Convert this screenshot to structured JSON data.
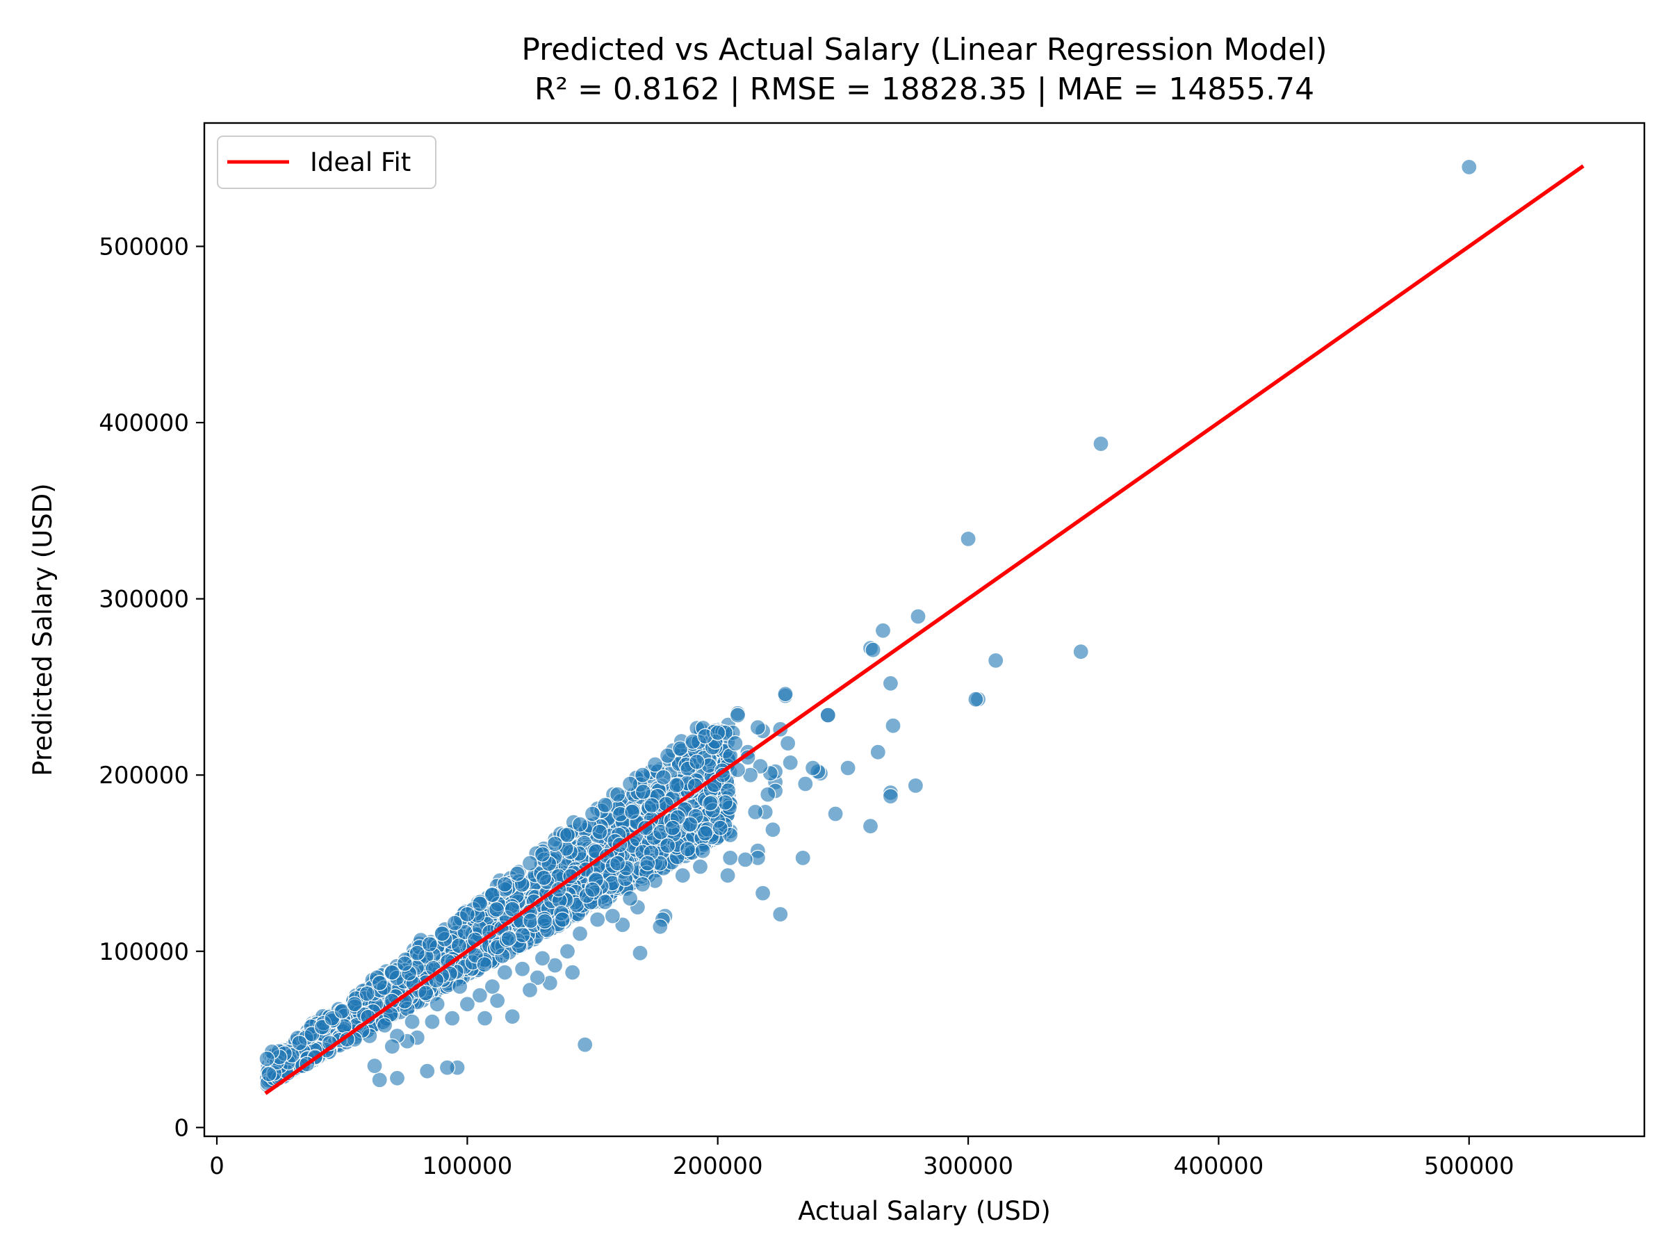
{
  "chart_data": {
    "type": "scatter",
    "title": "Predicted vs Actual Salary (Linear Regression Model)",
    "subtitle": "R² = 0.8162 | RMSE = 18828.35 | MAE = 14855.74",
    "xlabel": "Actual Salary (USD)",
    "ylabel": "Predicted Salary (USD)",
    "xlim": [
      -5000,
      570000
    ],
    "ylim": [
      -5000,
      570000
    ],
    "xticks": [
      0,
      100000,
      200000,
      300000,
      400000,
      500000
    ],
    "yticks": [
      0,
      100000,
      200000,
      300000,
      400000,
      500000
    ],
    "xtick_labels": [
      "0",
      "100000",
      "200000",
      "300000",
      "400000",
      "500000"
    ],
    "ytick_labels": [
      "0",
      "100000",
      "200000",
      "300000",
      "400000",
      "500000"
    ],
    "grid": false,
    "legend": {
      "position": "upper-left",
      "entries": [
        "Ideal Fit"
      ]
    },
    "colors": {
      "points": "#1f77b4",
      "ideal_line": "#ff0000"
    },
    "series": [
      {
        "kind": "scatter",
        "points": [
          [
            500000,
            545000
          ],
          [
            353000,
            388000
          ],
          [
            300000,
            334000
          ],
          [
            345000,
            270000
          ],
          [
            311000,
            265000
          ],
          [
            280000,
            290000
          ],
          [
            266000,
            282000
          ],
          [
            261000,
            272000
          ],
          [
            262000,
            271000
          ],
          [
            269000,
            252000
          ],
          [
            304000,
            243000
          ],
          [
            303000,
            243000
          ],
          [
            279000,
            194000
          ],
          [
            270000,
            228000
          ],
          [
            264000,
            213000
          ],
          [
            269000,
            190000
          ],
          [
            269000,
            188000
          ],
          [
            261000,
            171000
          ],
          [
            252000,
            204000
          ],
          [
            247000,
            178000
          ],
          [
            244000,
            234000
          ],
          [
            244000,
            234000
          ],
          [
            241000,
            201000
          ],
          [
            240000,
            202000
          ],
          [
            238000,
            204000
          ],
          [
            235000,
            195000
          ],
          [
            234000,
            153000
          ],
          [
            229000,
            207000
          ],
          [
            228000,
            218000
          ],
          [
            227000,
            245000
          ],
          [
            227000,
            246000
          ],
          [
            225000,
            226000
          ],
          [
            225000,
            121000
          ],
          [
            223000,
            196000
          ],
          [
            223000,
            202000
          ],
          [
            223000,
            191000
          ],
          [
            222000,
            169000
          ],
          [
            221000,
            201000
          ],
          [
            220000,
            189000
          ],
          [
            219000,
            179000
          ],
          [
            218000,
            225000
          ],
          [
            218000,
            133000
          ],
          [
            217000,
            205000
          ],
          [
            216000,
            227000
          ],
          [
            216000,
            157000
          ],
          [
            216000,
            153000
          ],
          [
            215000,
            179000
          ],
          [
            213000,
            200000
          ],
          [
            212000,
            213000
          ],
          [
            211000,
            152000
          ],
          [
            208000,
            235000
          ],
          [
            208000,
            234000
          ],
          [
            206000,
            224000
          ],
          [
            205000,
            211000
          ],
          [
            205000,
            166000
          ],
          [
            205000,
            153000
          ],
          [
            204000,
            143000
          ],
          [
            203000,
            224000
          ],
          [
            202000,
            200000
          ],
          [
            201000,
            170000
          ],
          [
            199000,
            219000
          ],
          [
            198000,
            180000
          ],
          [
            197000,
            184000
          ],
          [
            195000,
            167000
          ],
          [
            194000,
            157000
          ],
          [
            193000,
            148000
          ],
          [
            191000,
            194000
          ],
          [
            189000,
            172000
          ],
          [
            188000,
            158000
          ],
          [
            186000,
            143000
          ],
          [
            184000,
            176000
          ],
          [
            182000,
            170000
          ],
          [
            180000,
            160000
          ],
          [
            179000,
            120000
          ],
          [
            178000,
            118000
          ],
          [
            177000,
            114000
          ],
          [
            169000,
            99000
          ],
          [
            175000,
            140000
          ],
          [
            172000,
            150000
          ],
          [
            170000,
            138000
          ],
          [
            168000,
            125000
          ],
          [
            165000,
            130000
          ],
          [
            162000,
            115000
          ],
          [
            160000,
            150000
          ],
          [
            158000,
            120000
          ],
          [
            155000,
            128000
          ],
          [
            152000,
            118000
          ],
          [
            150000,
            135000
          ],
          [
            147000,
            47000
          ],
          [
            145000,
            110000
          ],
          [
            142000,
            88000
          ],
          [
            140000,
            100000
          ],
          [
            138000,
            118000
          ],
          [
            135000,
            92000
          ],
          [
            133000,
            82000
          ],
          [
            130000,
            96000
          ],
          [
            128000,
            85000
          ],
          [
            125000,
            78000
          ],
          [
            122000,
            90000
          ],
          [
            118000,
            63000
          ],
          [
            115000,
            88000
          ],
          [
            112000,
            72000
          ],
          [
            110000,
            80000
          ],
          [
            107000,
            62000
          ],
          [
            105000,
            75000
          ],
          [
            100000,
            70000
          ],
          [
            97000,
            80000
          ],
          [
            96000,
            34000
          ],
          [
            94000,
            62000
          ],
          [
            92000,
            34000
          ],
          [
            88000,
            70000
          ],
          [
            86000,
            60000
          ],
          [
            84000,
            32000
          ],
          [
            80000,
            51000
          ],
          [
            78000,
            60000
          ],
          [
            76000,
            49000
          ],
          [
            72000,
            28000
          ],
          [
            72000,
            52000
          ],
          [
            70000,
            46000
          ],
          [
            67000,
            58000
          ],
          [
            65000,
            27000
          ],
          [
            63000,
            35000
          ],
          [
            61000,
            52000
          ],
          [
            58000,
            55000
          ],
          [
            55000,
            50000
          ],
          [
            52000,
            50000
          ],
          [
            36000,
            36000
          ],
          [
            30000,
            41000
          ],
          [
            27000,
            42000
          ],
          [
            25000,
            40000
          ],
          [
            22000,
            43000
          ],
          [
            20000,
            39000
          ],
          [
            33000,
            48000
          ],
          [
            38000,
            53000
          ],
          [
            42000,
            57000
          ],
          [
            46000,
            62000
          ],
          [
            50000,
            66000
          ],
          [
            55000,
            70000
          ],
          [
            60000,
            76000
          ],
          [
            65000,
            82000
          ],
          [
            70000,
            88000
          ],
          [
            75000,
            93000
          ],
          [
            80000,
            99000
          ],
          [
            85000,
            104000
          ],
          [
            90000,
            110000
          ],
          [
            95000,
            116000
          ],
          [
            100000,
            121000
          ],
          [
            105000,
            127000
          ],
          [
            110000,
            132000
          ],
          [
            115000,
            138000
          ],
          [
            120000,
            144000
          ],
          [
            125000,
            150000
          ],
          [
            130000,
            155000
          ],
          [
            135000,
            161000
          ],
          [
            140000,
            166000
          ],
          [
            145000,
            172000
          ],
          [
            150000,
            178000
          ],
          [
            155000,
            183000
          ],
          [
            160000,
            189000
          ],
          [
            165000,
            195000
          ],
          [
            170000,
            200000
          ],
          [
            175000,
            206000
          ],
          [
            180000,
            211000
          ],
          [
            185000,
            215000
          ],
          [
            190000,
            219000
          ],
          [
            195000,
            222000
          ],
          [
            200000,
            224000
          ],
          [
            207000,
            218000
          ],
          [
            212000,
            210000
          ],
          [
            208000,
            203000
          ]
        ],
        "dense_band": {
          "x_range": [
            20000,
            205000
          ],
          "upper": {
            "slope": 1.09,
            "intercept": 18000
          },
          "lower": {
            "slope": 0.78,
            "intercept": 8000
          },
          "approx_count": 2400
        }
      },
      {
        "kind": "line",
        "name": "Ideal Fit",
        "x": [
          20000,
          545000
        ],
        "y": [
          20000,
          545000
        ]
      }
    ]
  }
}
